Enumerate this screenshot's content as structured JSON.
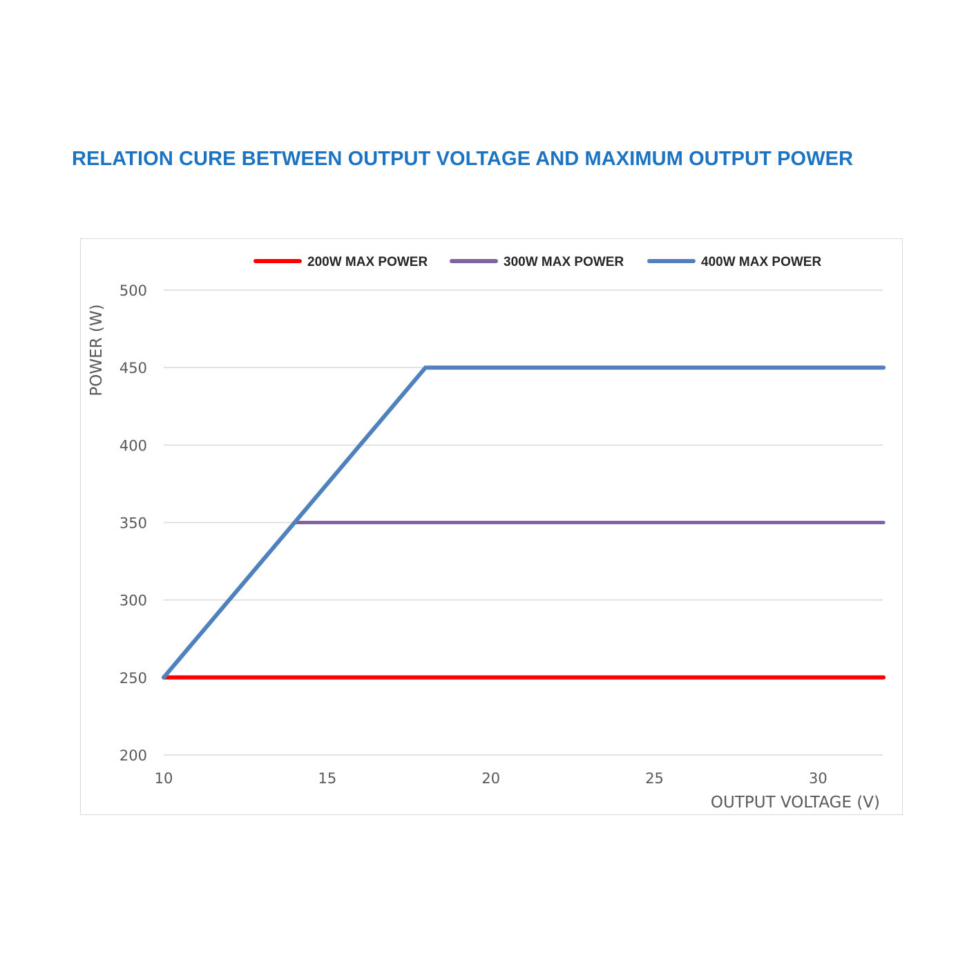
{
  "title": "RELATION CURE BETWEEN OUTPUT VOLTAGE AND MAXIMUM OUTPUT POWER",
  "chart_data": {
    "type": "line",
    "title": "RELATION CURE BETWEEN OUTPUT VOLTAGE AND MAXIMUM OUTPUT POWER",
    "xlabel": "OUTPUT VOLTAGE (V)",
    "ylabel": "POWER (W)",
    "xlim": [
      10,
      32
    ],
    "ylim": [
      200,
      500
    ],
    "xticks": [
      10,
      15,
      20,
      25,
      30
    ],
    "yticks": [
      200,
      250,
      300,
      350,
      400,
      450,
      500
    ],
    "grid": true,
    "legend_position": "top",
    "series": [
      {
        "name": "200W MAX POWER",
        "color": "#ff0000",
        "x": [
          10,
          32
        ],
        "y": [
          250,
          250
        ]
      },
      {
        "name": "300W MAX POWER",
        "color": "#8064a2",
        "x": [
          10,
          14,
          32
        ],
        "y": [
          250,
          350,
          350
        ]
      },
      {
        "name": "400W MAX POWER",
        "color": "#4f81bd",
        "x": [
          10,
          18,
          32
        ],
        "y": [
          250,
          450,
          450
        ]
      }
    ]
  }
}
